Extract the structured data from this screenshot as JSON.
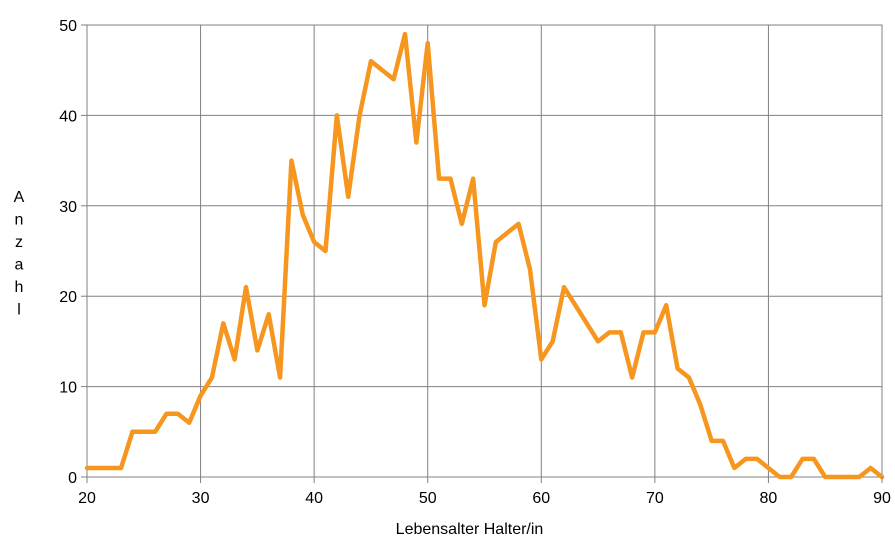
{
  "chart_data": {
    "type": "line",
    "xlabel": "Lebensalter Halter/in",
    "ylabel": "Anzahl",
    "xlim": [
      20,
      90
    ],
    "ylim": [
      0,
      50
    ],
    "x_ticks": [
      20,
      30,
      40,
      50,
      60,
      70,
      80,
      90
    ],
    "y_ticks": [
      0,
      10,
      20,
      30,
      40,
      50
    ],
    "grid": true,
    "legend": "none",
    "series": [
      {
        "color": "#f7961e",
        "x": [
          20,
          21,
          22,
          23,
          24,
          25,
          26,
          27,
          28,
          29,
          30,
          31,
          32,
          33,
          34,
          35,
          36,
          37,
          38,
          39,
          40,
          41,
          42,
          43,
          44,
          45,
          46,
          47,
          48,
          49,
          50,
          51,
          52,
          53,
          54,
          55,
          56,
          57,
          58,
          59,
          60,
          61,
          62,
          63,
          64,
          65,
          66,
          67,
          68,
          69,
          70,
          71,
          72,
          73,
          74,
          75,
          76,
          77,
          78,
          79,
          80,
          81,
          82,
          83,
          84,
          85,
          86,
          87,
          88,
          89,
          90
        ],
        "values": [
          1,
          1,
          1,
          1,
          5,
          5,
          5,
          7,
          7,
          6,
          9,
          11,
          17,
          13,
          21,
          14,
          18,
          11,
          35,
          29,
          26,
          25,
          40,
          31,
          40,
          46,
          45,
          44,
          49,
          37,
          48,
          33,
          33,
          28,
          33,
          19,
          26,
          27,
          28,
          23,
          13,
          15,
          21,
          19,
          17,
          15,
          16,
          16,
          11,
          16,
          16,
          19,
          12,
          11,
          8,
          4,
          4,
          1,
          2,
          2,
          1,
          0,
          0,
          2,
          2,
          0,
          0,
          0,
          0,
          1,
          0
        ]
      }
    ]
  }
}
